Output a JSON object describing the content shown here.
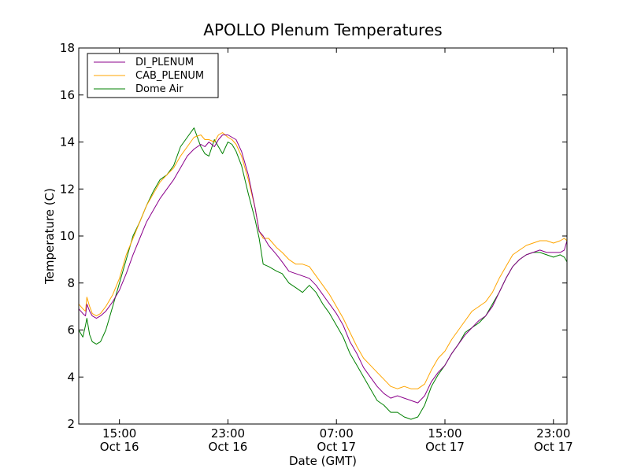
{
  "chart_data": {
    "type": "line",
    "title": "APOLLO Plenum Temperatures",
    "xlabel": "Date (GMT)",
    "ylabel": "Temperature (C)",
    "x_unit": "hours since Oct 16 12:00 GMT",
    "xlim": [
      0,
      36
    ],
    "ylim": [
      2,
      18
    ],
    "yticks": [
      2,
      4,
      6,
      8,
      10,
      12,
      14,
      16,
      18
    ],
    "xticks": [
      {
        "value": 3,
        "time": "15:00",
        "date": "Oct 16"
      },
      {
        "value": 11,
        "time": "23:00",
        "date": "Oct 16"
      },
      {
        "value": 19,
        "time": "07:00",
        "date": "Oct 17"
      },
      {
        "value": 27,
        "time": "15:00",
        "date": "Oct 17"
      },
      {
        "value": 35,
        "time": "23:00",
        "date": "Oct 17"
      }
    ],
    "legend_position": "top-left",
    "series": [
      {
        "name": "DI_PLENUM",
        "color": "#8b008b",
        "x": [
          0,
          0.3,
          0.5,
          0.6,
          0.8,
          1.0,
          1.3,
          1.6,
          2.0,
          2.5,
          3.0,
          3.5,
          4.0,
          4.5,
          5.0,
          5.5,
          6.0,
          6.5,
          7.0,
          7.5,
          8.0,
          8.5,
          9.0,
          9.3,
          9.6,
          10.0,
          10.3,
          10.6,
          11.0,
          11.3,
          11.6,
          12.0,
          12.5,
          13.0,
          13.3,
          13.6,
          14.0,
          14.3,
          14.6,
          15.0,
          15.5,
          16.0,
          16.5,
          17.0,
          17.5,
          18.0,
          18.5,
          19.0,
          19.5,
          20.0,
          20.5,
          21.0,
          21.5,
          22.0,
          22.5,
          23.0,
          23.5,
          24.0,
          24.5,
          25.0,
          25.5,
          26.0,
          26.5,
          27.0,
          27.5,
          28.0,
          28.5,
          29.0,
          29.5,
          30.0,
          30.5,
          31.0,
          31.5,
          32.0,
          32.5,
          33.0,
          33.5,
          34.0,
          34.5,
          35.0,
          35.5,
          35.8,
          36.0
        ],
        "values": [
          6.9,
          6.7,
          6.6,
          7.1,
          6.8,
          6.6,
          6.5,
          6.6,
          6.8,
          7.2,
          7.7,
          8.4,
          9.2,
          9.9,
          10.6,
          11.1,
          11.6,
          12.0,
          12.4,
          12.9,
          13.4,
          13.7,
          13.9,
          13.8,
          14.0,
          13.8,
          14.1,
          14.3,
          14.3,
          14.2,
          14.1,
          13.6,
          12.6,
          11.2,
          10.2,
          10.0,
          9.6,
          9.4,
          9.2,
          8.9,
          8.5,
          8.4,
          8.3,
          8.2,
          7.9,
          7.5,
          7.1,
          6.7,
          6.2,
          5.5,
          5.0,
          4.4,
          4.0,
          3.6,
          3.3,
          3.1,
          3.2,
          3.1,
          3.0,
          2.9,
          3.2,
          3.8,
          4.2,
          4.5,
          5.0,
          5.4,
          5.8,
          6.1,
          6.4,
          6.6,
          7.0,
          7.6,
          8.2,
          8.7,
          9.0,
          9.2,
          9.3,
          9.4,
          9.3,
          9.3,
          9.3,
          9.4,
          9.8
        ]
      },
      {
        "name": "CAB_PLENUM",
        "color": "#ffa500",
        "x": [
          0,
          0.3,
          0.5,
          0.6,
          0.8,
          1.0,
          1.3,
          1.6,
          2.0,
          2.5,
          3.0,
          3.5,
          4.0,
          4.5,
          5.0,
          5.5,
          6.0,
          6.5,
          7.0,
          7.5,
          8.0,
          8.5,
          9.0,
          9.3,
          9.6,
          10.0,
          10.3,
          10.6,
          11.0,
          11.3,
          11.6,
          12.0,
          12.5,
          13.0,
          13.3,
          13.6,
          14.0,
          14.3,
          14.6,
          15.0,
          15.5,
          16.0,
          16.5,
          17.0,
          17.5,
          18.0,
          18.5,
          19.0,
          19.5,
          20.0,
          20.5,
          21.0,
          21.5,
          22.0,
          22.5,
          23.0,
          23.5,
          24.0,
          24.5,
          25.0,
          25.5,
          26.0,
          26.5,
          27.0,
          27.5,
          28.0,
          28.5,
          29.0,
          29.5,
          30.0,
          30.5,
          31.0,
          31.5,
          32.0,
          32.5,
          33.0,
          33.5,
          34.0,
          34.5,
          35.0,
          35.5,
          35.8,
          36.0
        ],
        "values": [
          7.1,
          6.9,
          6.8,
          7.4,
          7.0,
          6.7,
          6.6,
          6.7,
          7.0,
          7.5,
          8.2,
          9.2,
          9.9,
          10.6,
          11.3,
          11.8,
          12.3,
          12.6,
          12.9,
          13.4,
          13.8,
          14.2,
          14.3,
          14.1,
          14.1,
          14.0,
          14.3,
          14.4,
          14.2,
          14.1,
          13.9,
          13.4,
          12.4,
          11.2,
          10.2,
          9.9,
          9.9,
          9.7,
          9.5,
          9.3,
          9.0,
          8.8,
          8.8,
          8.7,
          8.3,
          7.9,
          7.5,
          7.0,
          6.5,
          5.9,
          5.3,
          4.8,
          4.5,
          4.2,
          3.9,
          3.6,
          3.5,
          3.6,
          3.5,
          3.5,
          3.7,
          4.3,
          4.8,
          5.1,
          5.6,
          6.0,
          6.4,
          6.8,
          7.0,
          7.2,
          7.6,
          8.2,
          8.7,
          9.2,
          9.4,
          9.6,
          9.7,
          9.8,
          9.8,
          9.7,
          9.8,
          9.9,
          9.8
        ]
      },
      {
        "name": "Dome Air",
        "color": "#008000",
        "x": [
          0,
          0.3,
          0.5,
          0.6,
          0.8,
          1.0,
          1.3,
          1.6,
          2.0,
          2.5,
          3.0,
          3.5,
          4.0,
          4.5,
          5.0,
          5.5,
          6.0,
          6.5,
          7.0,
          7.5,
          8.0,
          8.5,
          9.0,
          9.3,
          9.6,
          10.0,
          10.3,
          10.6,
          11.0,
          11.3,
          11.6,
          12.0,
          12.5,
          13.0,
          13.3,
          13.6,
          14.0,
          14.3,
          14.6,
          15.0,
          15.5,
          16.0,
          16.5,
          17.0,
          17.5,
          18.0,
          18.5,
          19.0,
          19.5,
          20.0,
          20.5,
          21.0,
          21.5,
          22.0,
          22.5,
          23.0,
          23.5,
          24.0,
          24.5,
          25.0,
          25.5,
          26.0,
          26.5,
          27.0,
          27.5,
          28.0,
          28.5,
          29.0,
          29.5,
          30.0,
          30.5,
          31.0,
          31.5,
          32.0,
          32.5,
          33.0,
          33.5,
          34.0,
          34.5,
          35.0,
          35.5,
          35.8,
          36.0
        ],
        "values": [
          6.0,
          5.7,
          6.2,
          6.5,
          5.8,
          5.5,
          5.4,
          5.5,
          6.0,
          7.0,
          8.0,
          9.0,
          10.0,
          10.6,
          11.3,
          11.9,
          12.4,
          12.6,
          13.0,
          13.8,
          14.2,
          14.6,
          13.8,
          13.5,
          13.4,
          14.1,
          13.8,
          13.5,
          14.0,
          13.9,
          13.6,
          13.0,
          11.8,
          10.7,
          9.9,
          8.8,
          8.7,
          8.6,
          8.5,
          8.4,
          8.0,
          7.8,
          7.6,
          7.9,
          7.6,
          7.1,
          6.7,
          6.2,
          5.7,
          5.0,
          4.5,
          4.0,
          3.5,
          3.0,
          2.8,
          2.5,
          2.5,
          2.3,
          2.2,
          2.3,
          2.8,
          3.6,
          4.1,
          4.5,
          5.0,
          5.4,
          5.9,
          6.1,
          6.3,
          6.6,
          7.1,
          7.6,
          8.2,
          8.7,
          9.0,
          9.2,
          9.3,
          9.3,
          9.2,
          9.1,
          9.2,
          9.1,
          8.9
        ]
      }
    ]
  }
}
